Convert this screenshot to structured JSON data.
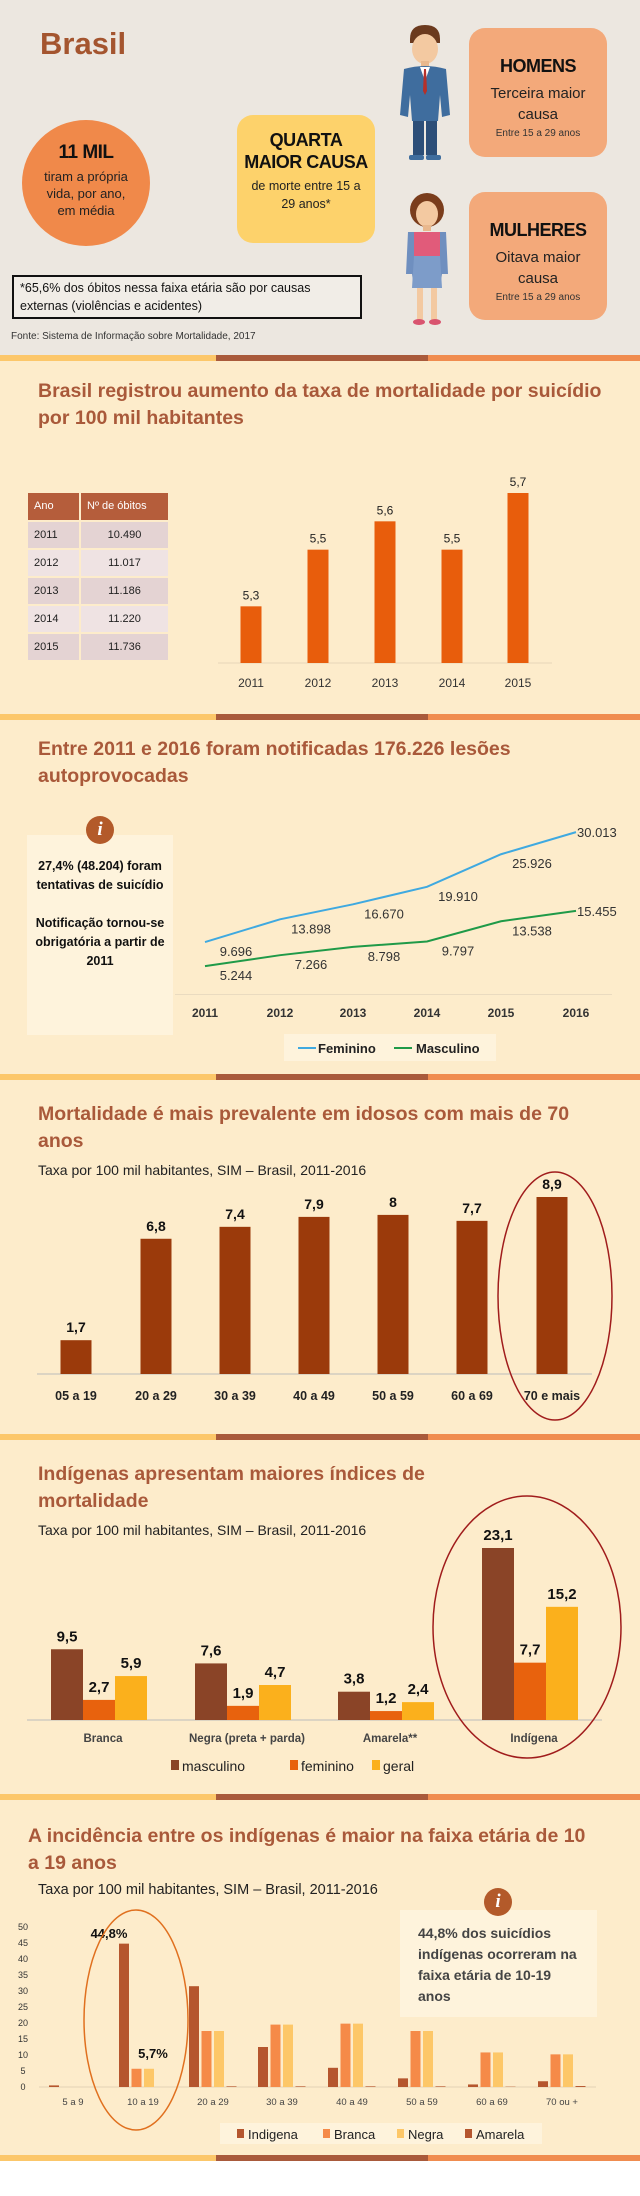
{
  "header": {
    "title": "Brasil",
    "stat_circle": {
      "value": "11 MIL",
      "text": "tiram a própria vida, por ano, em média"
    },
    "cause_box": {
      "title_1": "QUARTA",
      "title_2": "MAIOR CAUSA",
      "text": "de morte entre 15 a 29 anos*"
    },
    "men": {
      "title": "HOMENS",
      "text": "Terceira maior causa",
      "range": "Entre 15 a 29 anos"
    },
    "women": {
      "title": "MULHERES",
      "text": "Oitava maior causa",
      "range": "Entre 15 a 29 anos"
    },
    "note": "*65,6% dos óbitos nessa faixa etária são por causas externas (violências e acidentes)",
    "source": "Fonte: Sistema de Informação sobre Mortalidade, 2017"
  },
  "table": {
    "headers": [
      "Ano",
      "Nº de óbitos"
    ],
    "rows": [
      [
        "2011",
        "10.490"
      ],
      [
        "2012",
        "11.017"
      ],
      [
        "2013",
        "11.186"
      ],
      [
        "2014",
        "11.220"
      ],
      [
        "2015",
        "11.736"
      ]
    ]
  },
  "info_1": {
    "icon": "info-icon",
    "text_1": "27,4% (48.204) foram tentativas de suicídio",
    "text_2": "Notificação tornou-se obrigatória a partir de 2011"
  },
  "info_2": {
    "icon": "info-icon",
    "text": "44,8% dos suicídios indígenas ocorreram na faixa etária de 10-19 anos"
  },
  "colors": {
    "title": "#a9593a",
    "stripe": [
      "#fcc76a",
      "#a95a3b",
      "#f08c4f"
    ],
    "highlight_ellipse": "#a01c1c",
    "highlight_ellipse_2": "#e0701f"
  },
  "chart_data": [
    {
      "type": "bar",
      "title": "Brasil registrou aumento da taxa de mortalidade por suicídio por 100 mil habitantes",
      "categories": [
        "2011",
        "2012",
        "2013",
        "2014",
        "2015"
      ],
      "values": [
        5.3,
        5.5,
        5.6,
        5.5,
        5.7
      ],
      "labels": [
        "5,3",
        "5,5",
        "5,6",
        "5,5",
        "5,7"
      ],
      "ylim": [
        5.1,
        5.7
      ],
      "color": "#e85d0c",
      "grid": false
    },
    {
      "type": "line",
      "title": "Entre 2011 e 2016 foram notificadas 176.226 lesões autoprovocadas",
      "x": [
        "2011",
        "2012",
        "2013",
        "2014",
        "2015",
        "2016"
      ],
      "series": [
        {
          "name": "Feminino",
          "values": [
            9696,
            13898,
            16670,
            19910,
            25926,
            30013
          ],
          "labels": [
            "9.696",
            "13.898",
            "16.670",
            "19.910",
            "25.926",
            "30.013"
          ],
          "color": "#3fa9e0"
        },
        {
          "name": "Masculino",
          "values": [
            5244,
            7266,
            8798,
            9797,
            13538,
            15455
          ],
          "labels": [
            "5.244",
            "7.266",
            "8.798",
            "9.797",
            "13.538",
            "15.455"
          ],
          "color": "#1f9a48"
        }
      ],
      "ylim": [
        0,
        30013
      ],
      "legend": "bottom",
      "grid": false
    },
    {
      "type": "bar",
      "title": "Mortalidade é mais prevalente em idosos com mais de 70 anos",
      "subtitle": "Taxa por 100 mil habitantes, SIM – Brasil, 2011-2016",
      "categories": [
        "05 a 19",
        "20 a 29",
        "30 a 39",
        "40 a 49",
        "50 a 59",
        "60 a 69",
        "70 e mais"
      ],
      "values": [
        1.7,
        6.8,
        7.4,
        7.9,
        8,
        7.7,
        8.9
      ],
      "labels": [
        "1,7",
        "6,8",
        "7,4",
        "7,9",
        "8",
        "7,7",
        "8,9"
      ],
      "ylim": [
        0,
        8.9
      ],
      "color": "#9b3a0b",
      "highlight": "70 e mais",
      "grid": false
    },
    {
      "type": "bar",
      "title": "Indígenas apresentam maiores índices de mortalidade",
      "subtitle": "Taxa por 100 mil habitantes, SIM – Brasil, 2011-2016",
      "categories": [
        "Branca",
        "Negra (preta + parda)",
        "Amarela**",
        "Indígena"
      ],
      "series": [
        {
          "name": "masculino",
          "values": [
            9.5,
            7.6,
            3.8,
            23.1
          ],
          "labels": [
            "9,5",
            "7,6",
            "3,8",
            "23,1"
          ],
          "color": "#8a4427"
        },
        {
          "name": "feminino",
          "values": [
            2.7,
            1.9,
            1.2,
            7.7
          ],
          "labels": [
            "2,7",
            "1,9",
            "1,2",
            "7,7"
          ],
          "color": "#e8620d"
        },
        {
          "name": "geral",
          "values": [
            5.9,
            4.7,
            2.4,
            15.2
          ],
          "labels": [
            "5,9",
            "4,7",
            "2,4",
            "15,2"
          ],
          "color": "#fbb01c"
        }
      ],
      "ylim": [
        0,
        23.1
      ],
      "legend": "bottom",
      "highlight": "Indígena",
      "grid": false
    },
    {
      "type": "bar",
      "title": "A incidência entre os indígenas é maior na faixa etária de 10 a 19 anos",
      "subtitle": "Taxa por 100 mil habitantes, SIM – Brasil, 2011-2016",
      "categories": [
        "5 a 9",
        "10 a 19",
        "20 a 29",
        "30 a 39",
        "40 a 49",
        "50 a 59",
        "60 a 69",
        "70 ou +"
      ],
      "series": [
        {
          "name": "Indigena",
          "values": [
            0.5,
            44.8,
            31.5,
            12.5,
            6,
            2.7,
            0.8,
            1.8
          ],
          "color": "#b5562e"
        },
        {
          "name": "Branca",
          "values": [
            0,
            5.7,
            17.5,
            19.5,
            19.8,
            17.5,
            10.8,
            10.2
          ],
          "color": "#f58a48"
        },
        {
          "name": "Negra",
          "values": [
            0,
            5.7,
            17.5,
            19.5,
            19.8,
            17.5,
            10.8,
            10.2
          ],
          "color": "#fdc768"
        },
        {
          "name": "Amarela",
          "values": [
            0,
            0,
            0.2,
            0.2,
            0.2,
            0.2,
            0.1,
            0.3
          ],
          "color": "#b5562e"
        }
      ],
      "annotations": [
        "44,8%",
        "5,7%"
      ],
      "yticks": [
        0,
        5,
        10,
        15,
        20,
        25,
        30,
        35,
        40,
        45,
        50
      ],
      "ylim": [
        0,
        50
      ],
      "legend": "bottom",
      "highlight": "10 a 19",
      "grid": false
    }
  ]
}
